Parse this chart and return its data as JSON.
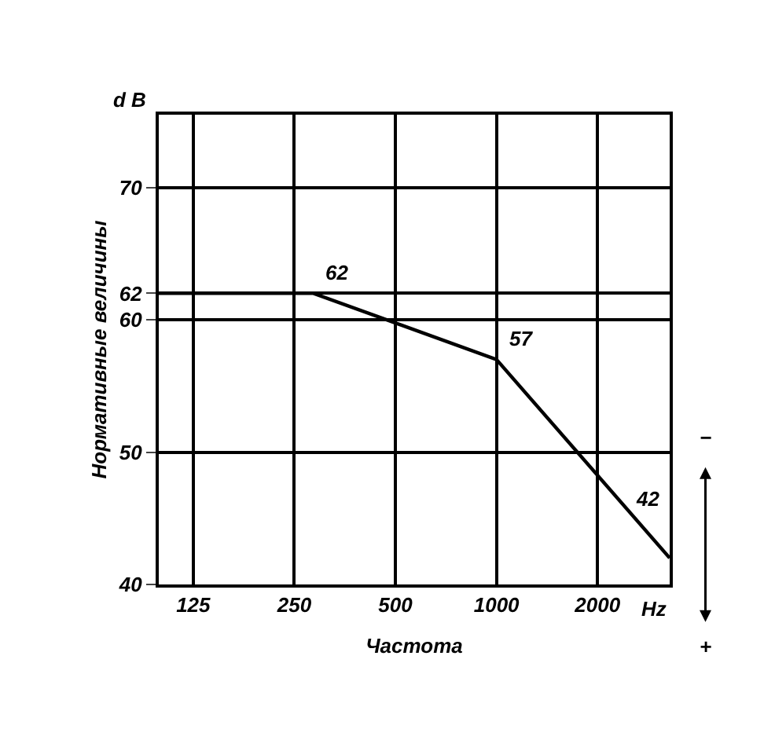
{
  "chart_data": {
    "type": "line",
    "ylabel": "Нормативные величины",
    "xlabel": "Частота",
    "x": [
      98.7,
      285,
      1000,
      3280
    ],
    "series": [
      {
        "color": "#000000",
        "values": [
          62,
          62,
          57,
          42
        ],
        "value_labels": [
          null,
          "62",
          "57",
          "42"
        ]
      }
    ],
    "log": "x",
    "xlim": [
      98.7,
      3280
    ],
    "xticks": [
      125,
      250,
      500,
      1000,
      2000
    ],
    "ylim": [
      40,
      75.5
    ],
    "yticks": [
      40,
      50,
      60,
      62,
      70
    ],
    "grid": true,
    "marker": "none",
    "line_style": "solid",
    "annotations": [
      "d B",
      "Hz",
      "−",
      "+"
    ]
  }
}
